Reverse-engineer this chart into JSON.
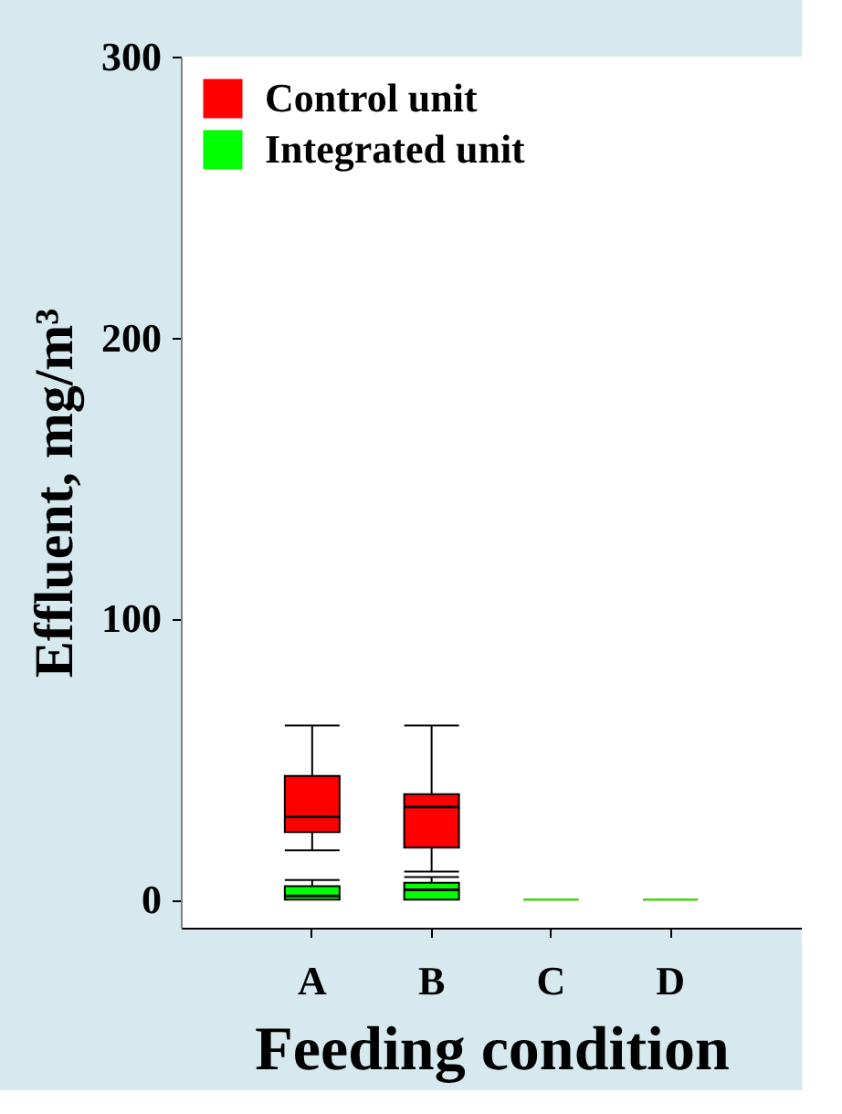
{
  "chart_data": {
    "type": "box",
    "xlabel": "Feeding condition",
    "ylabel": "Effluent, mg/m³",
    "categories": [
      "A",
      "B",
      "C",
      "D"
    ],
    "ylim": [
      -10,
      300
    ],
    "yticks": [
      0,
      100,
      200,
      300
    ],
    "grid": false,
    "legend": "top left",
    "series": [
      {
        "name": "Control unit",
        "color": "#ff0000",
        "boxes": [
          {
            "low": 17.5,
            "q1": 24,
            "median": 29.5,
            "q3": 44,
            "high": 62
          },
          {
            "low": 10,
            "q1": 18.5,
            "median": 33,
            "q3": 37.5,
            "high": 62
          },
          {
            "low": 0,
            "q1": 0,
            "median": 0,
            "q3": 0,
            "high": 0
          },
          {
            "low": 0,
            "q1": 0,
            "median": 0,
            "q3": 0,
            "high": 0
          }
        ]
      },
      {
        "name": "Integrated unit",
        "color": "#00ff00",
        "boxes": [
          {
            "low": 0,
            "q1": 0,
            "median": 1.3,
            "q3": 4.8,
            "high": 7
          },
          {
            "low": 0,
            "q1": 0,
            "median": 3.5,
            "q3": 6,
            "high": 8
          },
          {
            "low": 0,
            "q1": 0,
            "median": 0,
            "q3": 0,
            "high": 0
          },
          {
            "low": 0,
            "q1": 0,
            "median": 0,
            "q3": 0,
            "high": 0
          }
        ]
      }
    ]
  }
}
